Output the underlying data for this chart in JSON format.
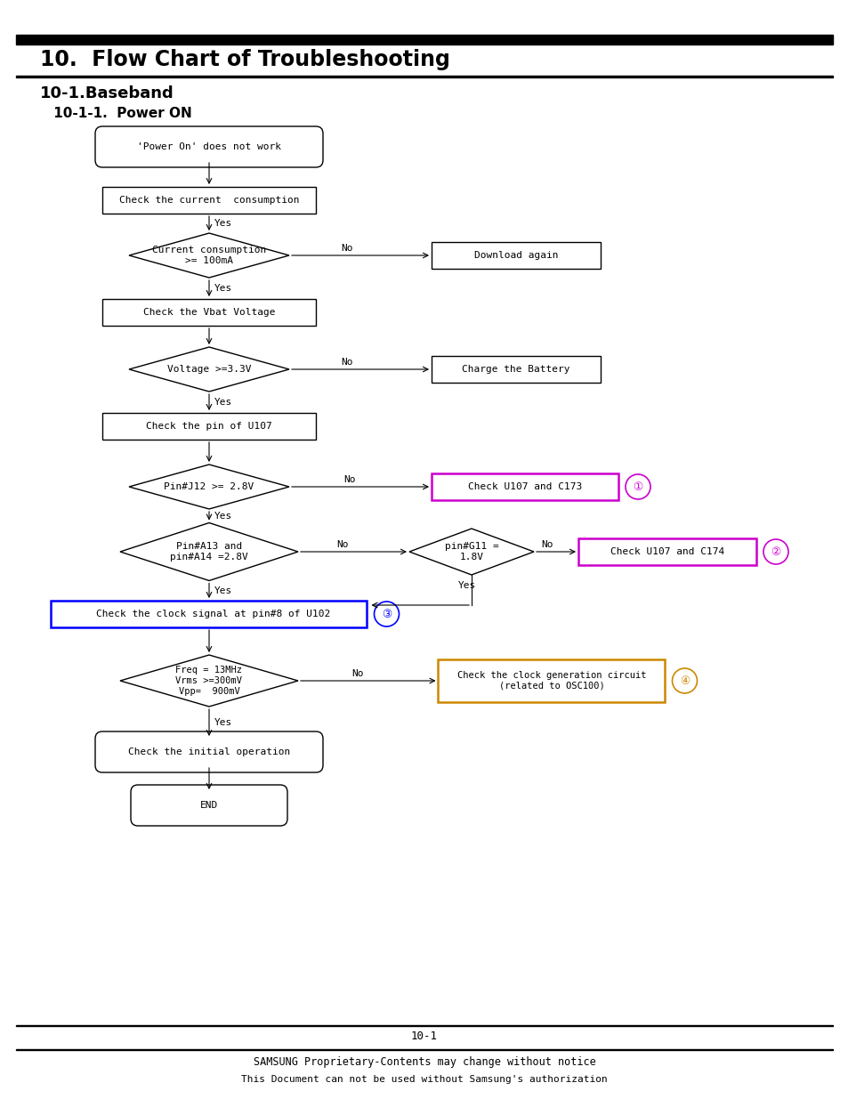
{
  "title": "10.  Flow Chart of Troubleshooting",
  "subtitle1": "10-1.Baseband",
  "subtitle2": " 10-1-1.  Power ON",
  "page_num": "10-1",
  "footer1": "SAMSUNG Proprietary-Contents may change without notice",
  "footer2": "This Document can not be used without Samsung's authorization",
  "bg_color": "#ffffff",
  "monofont": "DejaVu Sans Mono",
  "boldfont": "DejaVu Sans"
}
